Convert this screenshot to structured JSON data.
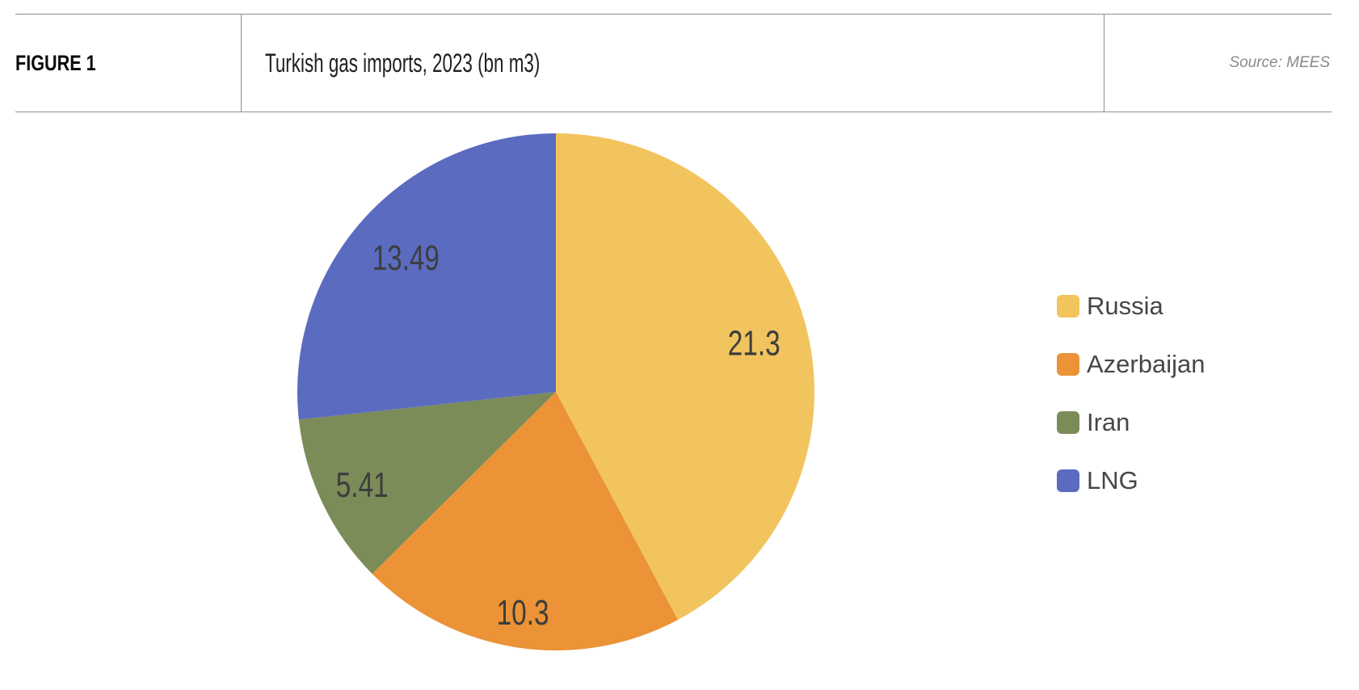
{
  "header": {
    "figure_label": "FIGURE 1",
    "title": "Turkish gas imports, 2023 (bn m3)",
    "source": "Source: MEES"
  },
  "chart_data": {
    "type": "pie",
    "title": "Turkish gas imports, 2023 (bn m3)",
    "start_angle": "12-oclock-clockwise",
    "label_color": "#3d3d3d",
    "legend_position": "right",
    "slices": [
      {
        "label": "Russia",
        "value": 21.3,
        "display": "21.3",
        "color": "#F1C45E",
        "label_radius": 0.79
      },
      {
        "label": "Azerbaijan",
        "value": 10.3,
        "display": "10.3",
        "color": "#EB9336",
        "label_radius": 0.86
      },
      {
        "label": "Iran",
        "value": 5.41,
        "display": "5.41",
        "color": "#7B8C59",
        "label_radius": 0.83
      },
      {
        "label": "LNG",
        "value": 13.49,
        "display": "13.49",
        "color": "#5B6BC0",
        "label_radius": 0.78
      }
    ]
  }
}
